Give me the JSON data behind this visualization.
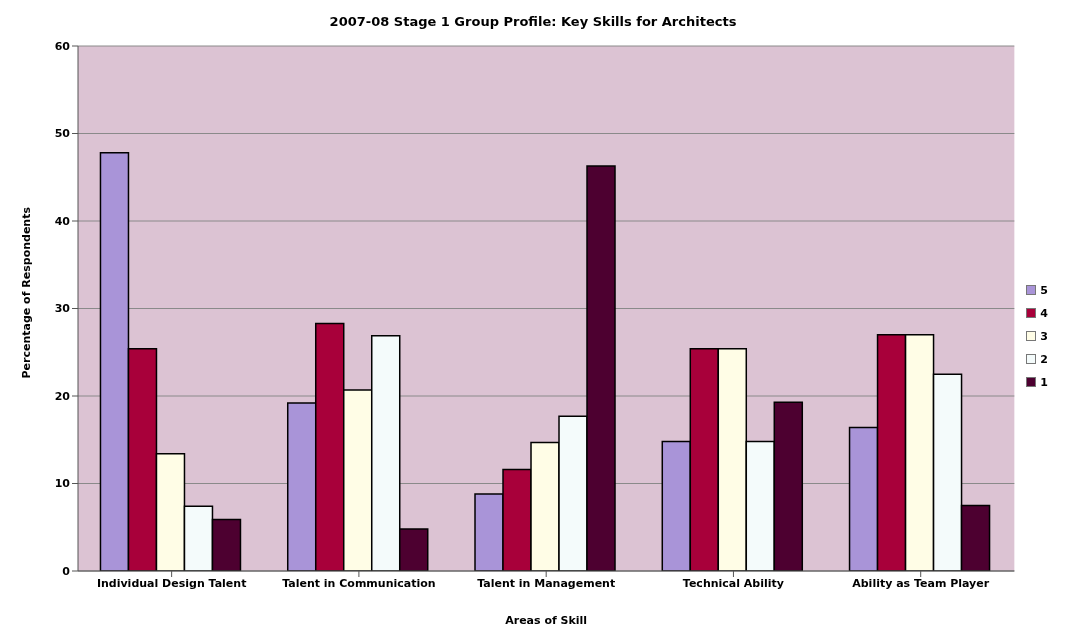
{
  "chart_data": {
    "type": "bar",
    "title": "2007-08 Stage 1 Group Profile: Key Skills for Architects",
    "xlabel": "Areas of Skill",
    "ylabel": "Percentage of Respondents",
    "categories": [
      "Individual Design Talent",
      "Talent in Communication",
      "Talent in Management",
      "Technical Ability",
      "Ability as Team Player"
    ],
    "series": [
      {
        "name": "5",
        "color": "#a994d8",
        "values": [
          47.8,
          19.2,
          8.8,
          14.8,
          16.4
        ]
      },
      {
        "name": "4",
        "color": "#a8003a",
        "values": [
          25.4,
          28.3,
          11.6,
          25.4,
          27.0
        ]
      },
      {
        "name": "3",
        "color": "#fffde6",
        "values": [
          13.4,
          20.7,
          14.7,
          25.4,
          27.0
        ]
      },
      {
        "name": "2",
        "color": "#f4fbfb",
        "values": [
          7.4,
          26.9,
          17.7,
          14.8,
          22.5
        ]
      },
      {
        "name": "1",
        "color": "#4d0030",
        "values": [
          5.9,
          4.8,
          46.3,
          19.3,
          7.5
        ]
      }
    ],
    "ylim": [
      0,
      60
    ],
    "yticks": [
      0,
      10,
      20,
      30,
      40,
      50,
      60
    ],
    "grid": "y",
    "legend": "right"
  }
}
